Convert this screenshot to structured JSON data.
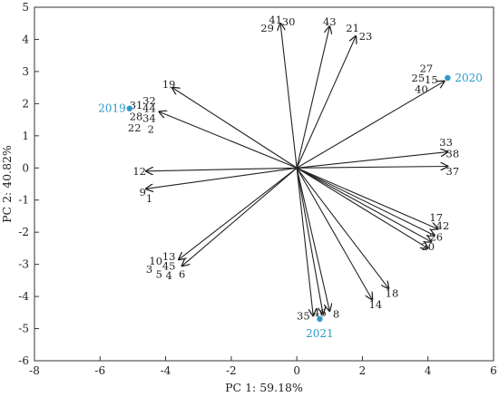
{
  "chart_data": {
    "type": "scatter",
    "subtype": "biplot",
    "xlabel": "PC 1: 59.18%",
    "ylabel": "PC 2: 40.82%",
    "xlim": [
      -8,
      6
    ],
    "ylim": [
      -6,
      5
    ],
    "xticks": [
      "-8",
      "-6",
      "-4",
      "-2",
      "0",
      "2",
      "4",
      "6"
    ],
    "yticks": [
      "5",
      "4",
      "3",
      "2",
      "1",
      "0",
      "-1",
      "-2",
      "-3",
      "-4",
      "-5",
      "-6"
    ],
    "grid": false,
    "year_color": "#2e9ac9",
    "arrow_color": "#222222",
    "years": [
      {
        "label": "2019",
        "x": -5.1,
        "y": 1.85
      },
      {
        "label": "2020",
        "x": 4.6,
        "y": 2.8
      },
      {
        "label": "2021",
        "x": 0.7,
        "y": -4.7
      }
    ],
    "vectors": [
      {
        "labels": [
          "41",
          "30",
          "29"
        ],
        "x": -0.5,
        "y": 4.5
      },
      {
        "labels": [
          "43"
        ],
        "x": 1.0,
        "y": 4.4
      },
      {
        "labels": [
          "21",
          "23"
        ],
        "x": 1.8,
        "y": 4.1
      },
      {
        "labels": [
          "27",
          "25",
          "15",
          "40"
        ],
        "x": 4.5,
        "y": 2.7
      },
      {
        "labels": [
          "19"
        ],
        "x": -3.8,
        "y": 2.5
      },
      {
        "labels": [
          "31",
          "32",
          "44",
          "28",
          "34",
          "22",
          "2"
        ],
        "x": -4.2,
        "y": 1.75
      },
      {
        "labels": [
          "33",
          "38"
        ],
        "x": 4.6,
        "y": 0.5
      },
      {
        "labels": [
          "37"
        ],
        "x": 4.6,
        "y": 0.05
      },
      {
        "labels": [
          "12"
        ],
        "x": -4.6,
        "y": -0.1
      },
      {
        "labels": [
          "9",
          "1"
        ],
        "x": -4.6,
        "y": -0.65
      },
      {
        "labels": [
          "17"
        ],
        "x": 4.3,
        "y": -1.9
      },
      {
        "labels": [
          "42"
        ],
        "x": 4.2,
        "y": -2.1
      },
      {
        "labels": [
          "26"
        ],
        "x": 4.1,
        "y": -2.3
      },
      {
        "labels": [
          "20"
        ],
        "x": 4.0,
        "y": -2.5
      },
      {
        "labels": [
          "13",
          "10"
        ],
        "x": -3.6,
        "y": -2.85
      },
      {
        "labels": [
          "45",
          "3",
          "5",
          "4",
          "6"
        ],
        "x": -3.5,
        "y": -3.05
      },
      {
        "labels": [
          "18"
        ],
        "x": 2.8,
        "y": -3.75
      },
      {
        "labels": [
          "14"
        ],
        "x": 2.3,
        "y": -4.1
      },
      {
        "labels": [
          "35"
        ],
        "x": 0.5,
        "y": -4.6
      },
      {
        "labels": [
          "46"
        ],
        "x": 0.8,
        "y": -4.55
      },
      {
        "labels": [
          "8"
        ],
        "x": 1.0,
        "y": -4.45
      }
    ],
    "vector_label_positions": [
      {
        "text": "41",
        "x": -0.65,
        "y": 4.6
      },
      {
        "text": "30",
        "x": -0.25,
        "y": 4.55
      },
      {
        "text": "29",
        "x": -0.9,
        "y": 4.35
      },
      {
        "text": "43",
        "x": 1.0,
        "y": 4.55
      },
      {
        "text": "21",
        "x": 1.7,
        "y": 4.35
      },
      {
        "text": "23",
        "x": 2.1,
        "y": 4.1
      },
      {
        "text": "27",
        "x": 3.95,
        "y": 3.1
      },
      {
        "text": "25",
        "x": 3.7,
        "y": 2.8
      },
      {
        "text": "15",
        "x": 4.1,
        "y": 2.75
      },
      {
        "text": "40",
        "x": 3.8,
        "y": 2.45
      },
      {
        "text": "19",
        "x": -3.9,
        "y": 2.6
      },
      {
        "text": "31",
        "x": -4.9,
        "y": 1.95
      },
      {
        "text": "32",
        "x": -4.5,
        "y": 2.1
      },
      {
        "text": "44",
        "x": -4.5,
        "y": 1.85
      },
      {
        "text": "28",
        "x": -4.9,
        "y": 1.6
      },
      {
        "text": "34",
        "x": -4.5,
        "y": 1.55
      },
      {
        "text": "22",
        "x": -4.95,
        "y": 1.25
      },
      {
        "text": "2",
        "x": -4.45,
        "y": 1.2
      },
      {
        "text": "33",
        "x": 4.55,
        "y": 0.8
      },
      {
        "text": "38",
        "x": 4.75,
        "y": 0.45
      },
      {
        "text": "37",
        "x": 4.75,
        "y": -0.1
      },
      {
        "text": "12",
        "x": -4.8,
        "y": -0.1
      },
      {
        "text": "9",
        "x": -4.7,
        "y": -0.75
      },
      {
        "text": "1",
        "x": -4.5,
        "y": -0.95
      },
      {
        "text": "17",
        "x": 4.25,
        "y": -1.55
      },
      {
        "text": "42",
        "x": 4.45,
        "y": -1.8
      },
      {
        "text": "26",
        "x": 4.25,
        "y": -2.15
      },
      {
        "text": "20",
        "x": 4.0,
        "y": -2.45
      },
      {
        "text": "13",
        "x": -3.9,
        "y": -2.75
      },
      {
        "text": "10",
        "x": -4.3,
        "y": -2.9
      },
      {
        "text": "45",
        "x": -3.9,
        "y": -3.05
      },
      {
        "text": "3",
        "x": -4.5,
        "y": -3.15
      },
      {
        "text": "5",
        "x": -4.2,
        "y": -3.3
      },
      {
        "text": "4",
        "x": -3.9,
        "y": -3.35
      },
      {
        "text": "6",
        "x": -3.5,
        "y": -3.3
      },
      {
        "text": "18",
        "x": 2.9,
        "y": -3.9
      },
      {
        "text": "14",
        "x": 2.4,
        "y": -4.25
      },
      {
        "text": "35",
        "x": 0.2,
        "y": -4.6
      },
      {
        "text": "46",
        "x": 0.7,
        "y": -4.5
      },
      {
        "text": "8",
        "x": 1.2,
        "y": -4.55
      }
    ]
  }
}
